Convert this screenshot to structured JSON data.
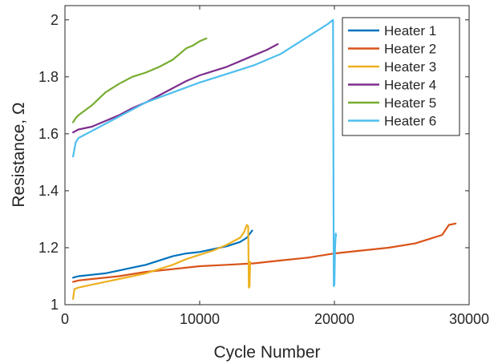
{
  "chart_data": {
    "type": "line",
    "title": "",
    "xlabel": "Cycle Number",
    "ylabel": "Resistance, Ω",
    "xlim": [
      0,
      30000
    ],
    "ylim": [
      1,
      2.05
    ],
    "x_ticks": [
      0,
      10000,
      20000,
      30000
    ],
    "x_tick_labels": [
      "0",
      "10000",
      "20000",
      "30000"
    ],
    "y_ticks": [
      1,
      1.2,
      1.4,
      1.6,
      1.8,
      2
    ],
    "y_tick_labels": [
      "1",
      "1.2",
      "1.4",
      "1.6",
      "1.8",
      "2"
    ],
    "grid": false,
    "legend_position": "top-right",
    "series": [
      {
        "name": "Heater 1",
        "color": "#0072BD",
        "x": [
          600,
          1000,
          2000,
          3000,
          4000,
          5000,
          6000,
          7000,
          8000,
          9000,
          10000,
          11000,
          12000,
          13000,
          13500,
          13900
        ],
        "y": [
          1.095,
          1.1,
          1.105,
          1.11,
          1.12,
          1.13,
          1.14,
          1.155,
          1.17,
          1.18,
          1.185,
          1.195,
          1.205,
          1.22,
          1.235,
          1.26
        ]
      },
      {
        "name": "Heater 2",
        "color": "#D95319",
        "x": [
          600,
          1000,
          2000,
          4000,
          6000,
          8000,
          10000,
          12000,
          14000,
          16000,
          18000,
          20000,
          22000,
          24000,
          26000,
          27000,
          28000,
          28500,
          29000
        ],
        "y": [
          1.08,
          1.085,
          1.09,
          1.1,
          1.115,
          1.125,
          1.135,
          1.14,
          1.145,
          1.155,
          1.165,
          1.18,
          1.19,
          1.2,
          1.215,
          1.23,
          1.245,
          1.28,
          1.285
        ]
      },
      {
        "name": "Heater 3",
        "color": "#EDB120",
        "x": [
          600,
          700,
          1000,
          2000,
          3000,
          4000,
          5000,
          6000,
          7000,
          8000,
          9000,
          10000,
          11000,
          12000,
          13000,
          13300,
          13500,
          13600,
          13650,
          13700,
          13750
        ],
        "y": [
          1.02,
          1.055,
          1.06,
          1.07,
          1.08,
          1.09,
          1.1,
          1.11,
          1.125,
          1.14,
          1.16,
          1.175,
          1.19,
          1.21,
          1.235,
          1.255,
          1.28,
          1.275,
          1.06,
          1.065,
          1.15
        ]
      },
      {
        "name": "Heater 4",
        "color": "#7E2F8E",
        "x": [
          600,
          1000,
          2000,
          3000,
          4000,
          5000,
          6000,
          7000,
          8000,
          9000,
          10000,
          11000,
          12000,
          13000,
          14000,
          15000,
          15800
        ],
        "y": [
          1.605,
          1.615,
          1.625,
          1.645,
          1.665,
          1.69,
          1.71,
          1.735,
          1.76,
          1.785,
          1.805,
          1.82,
          1.835,
          1.855,
          1.875,
          1.895,
          1.915
        ]
      },
      {
        "name": "Heater 5",
        "color": "#77AC30",
        "x": [
          600,
          800,
          1000,
          2000,
          3000,
          4000,
          5000,
          6000,
          7000,
          8000,
          9000,
          9500,
          10000,
          10500
        ],
        "y": [
          1.64,
          1.655,
          1.665,
          1.7,
          1.745,
          1.775,
          1.8,
          1.815,
          1.835,
          1.86,
          1.9,
          1.91,
          1.925,
          1.935
        ]
      },
      {
        "name": "Heater 6",
        "color": "#4DBEEE",
        "x": [
          600,
          800,
          1000,
          2000,
          4000,
          6000,
          8000,
          10000,
          12000,
          14000,
          16000,
          18000,
          19500,
          19900,
          19950,
          20000,
          20050,
          20100,
          20120
        ],
        "y": [
          1.52,
          1.57,
          1.585,
          1.61,
          1.66,
          1.71,
          1.745,
          1.78,
          1.81,
          1.84,
          1.88,
          1.94,
          1.985,
          2.0,
          1.065,
          1.07,
          1.2,
          1.25,
          1.24
        ]
      }
    ]
  }
}
